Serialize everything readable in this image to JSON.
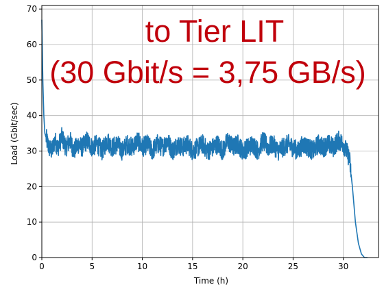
{
  "chart_data": {
    "type": "line",
    "xlabel": "Time (h)",
    "ylabel": "Load (Gbit/sec)",
    "xlim": [
      0,
      33.5
    ],
    "ylim": [
      0,
      71
    ],
    "x_ticks": [
      0,
      5,
      10,
      15,
      20,
      25,
      30
    ],
    "y_ticks": [
      0,
      10,
      20,
      30,
      40,
      50,
      60,
      70
    ],
    "grid": true,
    "annotations": [
      "to Tier LIT",
      "(30 Gbit/s = 3,75 GB/s)"
    ],
    "series": [
      {
        "color": "#1f77b4",
        "x": [
          0,
          0.1,
          0.2,
          0.3,
          0.5,
          0.7,
          1.0,
          1.3,
          1.6,
          2.0,
          2.4,
          2.8,
          3.2,
          3.6,
          4.0,
          4.5,
          5.0,
          5.5,
          6.0,
          6.5,
          7.0,
          7.5,
          8.0,
          8.5,
          9.0,
          9.5,
          10.0,
          10.5,
          11.0,
          11.5,
          12.0,
          12.5,
          13.0,
          13.5,
          14.0,
          14.5,
          15.0,
          15.5,
          16.0,
          16.5,
          17.0,
          17.5,
          18.0,
          18.5,
          19.0,
          19.5,
          20.0,
          20.5,
          21.0,
          21.5,
          22.0,
          22.5,
          23.0,
          23.5,
          24.0,
          24.5,
          25.0,
          25.5,
          26.0,
          26.5,
          27.0,
          27.5,
          28.0,
          28.5,
          29.0,
          29.5,
          30.0,
          30.3,
          30.6,
          30.9,
          31.2,
          31.5,
          31.8,
          32.1,
          32.4
        ],
        "y": [
          67,
          50,
          40,
          35,
          33,
          31,
          30,
          33,
          31,
          34,
          31,
          33,
          30,
          32,
          31,
          33,
          31,
          32,
          30,
          33,
          31,
          32,
          30,
          32,
          31,
          33,
          31,
          32,
          30,
          32,
          31,
          33,
          30,
          32,
          31,
          32,
          30,
          31,
          32,
          30,
          31,
          32,
          30,
          33,
          31,
          32,
          30,
          31,
          32,
          30,
          33,
          31,
          32,
          30,
          31,
          32,
          31,
          30,
          32,
          31,
          30,
          32,
          31,
          32,
          31,
          33,
          32,
          30,
          28,
          20,
          10,
          4,
          1,
          0,
          0
        ]
      }
    ]
  }
}
